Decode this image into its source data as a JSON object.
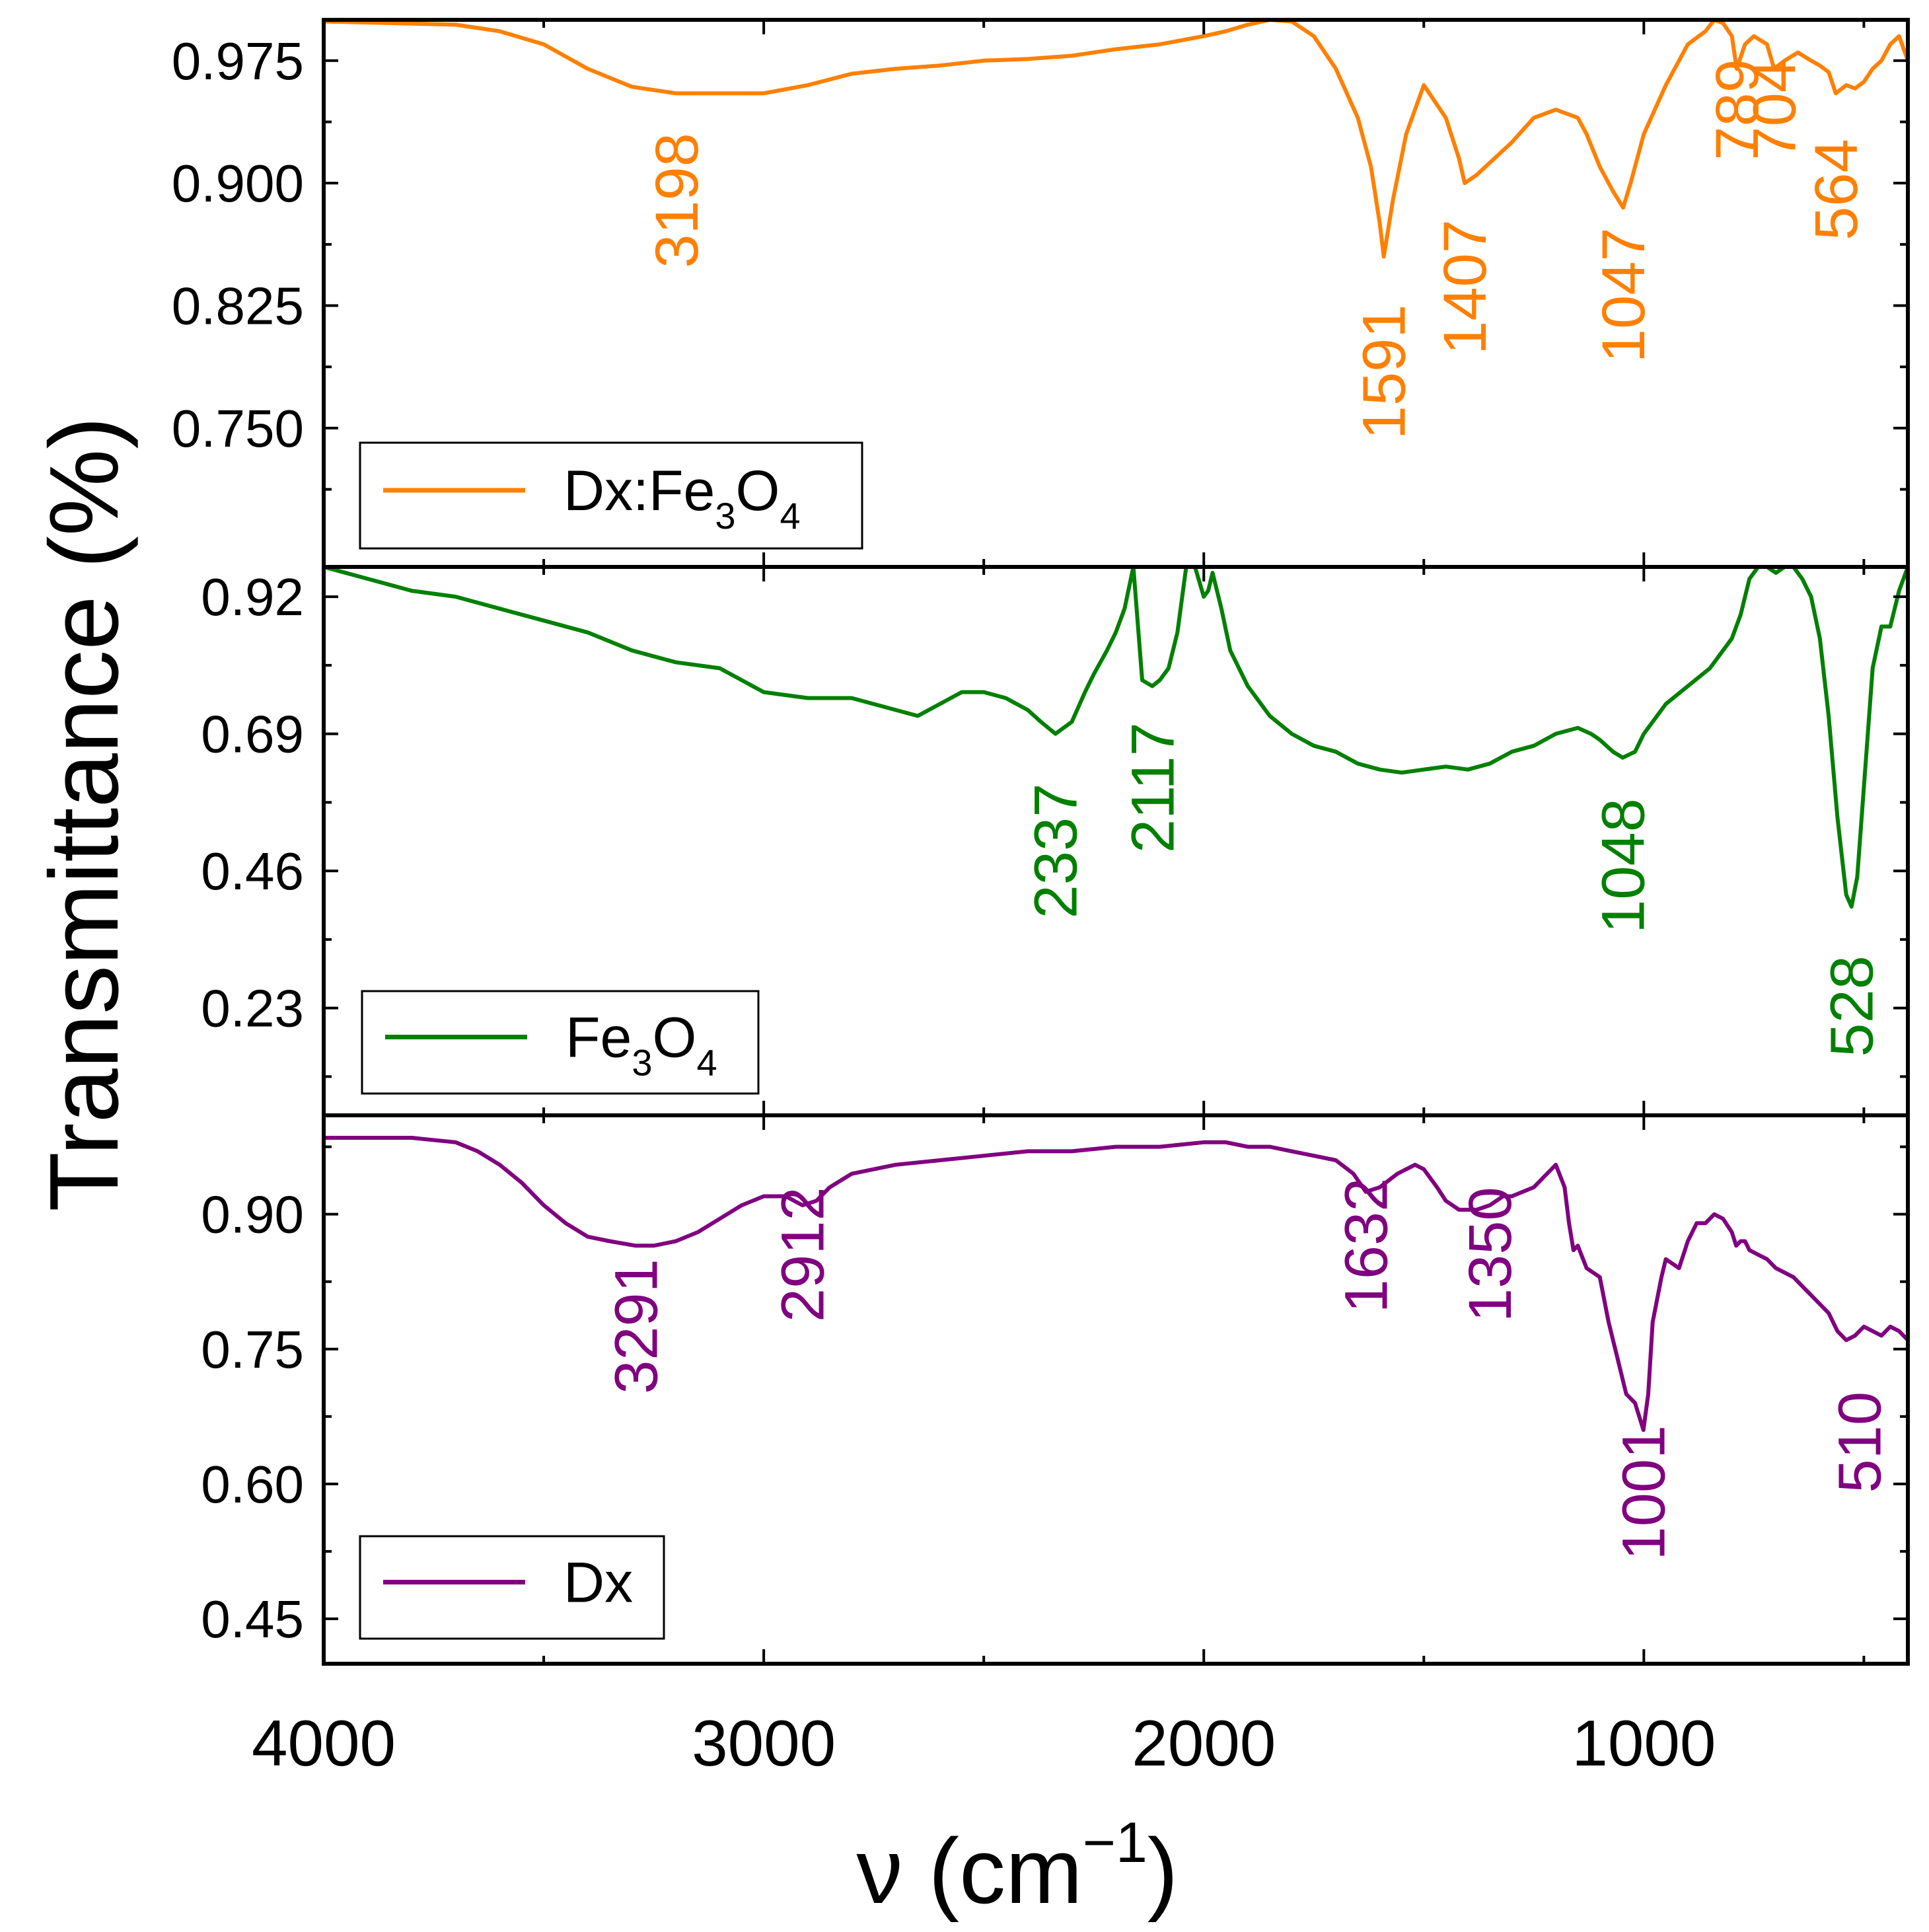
{
  "chart_data": {
    "type": "line",
    "layout": "stacked-panels",
    "xlabel": "ν (cm",
    "xlabel_superscript": "−1",
    "xlabel_close": ")",
    "ylabel": "Transmittance (%)",
    "xlim": [
      4000,
      400
    ],
    "x_ticks": [
      4000,
      3000,
      2000,
      1000
    ],
    "x_minor_ticks": [
      4000,
      3500,
      3000,
      2500,
      2000,
      1500,
      1000,
      500
    ],
    "panels": [
      {
        "name": "Dx:Fe3O4",
        "legend": {
          "prefix": "Dx:Fe",
          "sub1": "3",
          "mid": "O",
          "sub2": "4"
        },
        "color": "#ff8000",
        "ylim": [
          0.665,
          1.0
        ],
        "y_ticks": [
          "0.975",
          "0.900",
          "0.825",
          "0.750"
        ],
        "y_tick_values": [
          0.975,
          0.9,
          0.825,
          0.75
        ],
        "y_minor_ticks": [
          0.9375,
          0.8625,
          0.7875,
          0.7125
        ],
        "x": [
          4000,
          3850,
          3700,
          3600,
          3500,
          3400,
          3300,
          3200,
          3100,
          3000,
          2900,
          2800,
          2700,
          2600,
          2500,
          2400,
          2300,
          2200,
          2100,
          2000,
          1950,
          1900,
          1850,
          1800,
          1750,
          1700,
          1650,
          1620,
          1600,
          1591,
          1570,
          1540,
          1500,
          1450,
          1420,
          1407,
          1380,
          1340,
          1300,
          1250,
          1200,
          1150,
          1130,
          1100,
          1070,
          1047,
          1030,
          1000,
          950,
          900,
          860,
          840,
          820,
          800,
          789,
          770,
          750,
          720,
          704,
          680,
          650,
          620,
          600,
          580,
          564,
          540,
          520,
          500,
          480,
          460,
          440,
          420,
          400
        ],
        "y": [
          0.999,
          0.998,
          0.997,
          0.993,
          0.985,
          0.97,
          0.959,
          0.955,
          0.955,
          0.955,
          0.96,
          0.967,
          0.97,
          0.972,
          0.975,
          0.976,
          0.978,
          0.982,
          0.985,
          0.99,
          0.993,
          0.997,
          1.0,
          0.999,
          0.99,
          0.97,
          0.94,
          0.91,
          0.875,
          0.855,
          0.89,
          0.93,
          0.96,
          0.94,
          0.915,
          0.9,
          0.905,
          0.915,
          0.925,
          0.94,
          0.945,
          0.94,
          0.93,
          0.91,
          0.895,
          0.885,
          0.9,
          0.93,
          0.96,
          0.985,
          0.993,
          1.0,
          0.998,
          0.99,
          0.97,
          0.985,
          0.99,
          0.985,
          0.97,
          0.975,
          0.98,
          0.975,
          0.972,
          0.968,
          0.955,
          0.96,
          0.958,
          0.962,
          0.97,
          0.975,
          0.985,
          0.99,
          0.975
        ],
        "peaks": [
          {
            "label": "3198",
            "x": 3198,
            "y": 0.848
          },
          {
            "label": "1591",
            "x": 1591,
            "y": 0.743
          },
          {
            "label": "1407",
            "x": 1407,
            "y": 0.795
          },
          {
            "label": "1047",
            "x": 1047,
            "y": 0.79
          },
          {
            "label": "789",
            "x": 789,
            "y": 0.914
          },
          {
            "label": "704",
            "x": 704,
            "y": 0.914
          },
          {
            "label": "564",
            "x": 564,
            "y": 0.865
          }
        ]
      },
      {
        "name": "Fe3O4",
        "legend": {
          "prefix": "Fe",
          "sub1": "3",
          "mid": "O",
          "sub2": "4"
        },
        "color": "#008000",
        "ylim": [
          0.05,
          0.97
        ],
        "y_ticks": [
          "0.92",
          "0.69",
          "0.46",
          "0.23"
        ],
        "y_tick_values": [
          0.92,
          0.69,
          0.46,
          0.23
        ],
        "y_minor_ticks": [
          0.805,
          0.575,
          0.345,
          0.115
        ],
        "x": [
          4000,
          3900,
          3800,
          3700,
          3600,
          3500,
          3400,
          3300,
          3200,
          3100,
          3050,
          3000,
          2900,
          2800,
          2700,
          2650,
          2600,
          2550,
          2500,
          2450,
          2400,
          2370,
          2337,
          2300,
          2270,
          2250,
          2220,
          2200,
          2180,
          2160,
          2140,
          2117,
          2100,
          2080,
          2060,
          2040,
          2020,
          2000,
          1990,
          1980,
          1960,
          1940,
          1900,
          1850,
          1800,
          1750,
          1700,
          1650,
          1600,
          1550,
          1500,
          1450,
          1400,
          1350,
          1300,
          1250,
          1200,
          1150,
          1120,
          1100,
          1070,
          1048,
          1020,
          1000,
          950,
          900,
          850,
          800,
          780,
          760,
          740,
          720,
          700,
          680,
          660,
          640,
          620,
          600,
          580,
          560,
          540,
          528,
          515,
          500,
          480,
          460,
          440,
          420,
          400
        ],
        "y": [
          0.97,
          0.95,
          0.93,
          0.92,
          0.9,
          0.88,
          0.86,
          0.83,
          0.81,
          0.8,
          0.78,
          0.76,
          0.75,
          0.75,
          0.73,
          0.72,
          0.74,
          0.76,
          0.76,
          0.75,
          0.73,
          0.71,
          0.69,
          0.71,
          0.76,
          0.79,
          0.83,
          0.86,
          0.9,
          0.97,
          0.78,
          0.77,
          0.78,
          0.8,
          0.86,
          0.97,
          0.97,
          0.92,
          0.93,
          0.96,
          0.9,
          0.83,
          0.77,
          0.72,
          0.69,
          0.67,
          0.66,
          0.64,
          0.63,
          0.625,
          0.63,
          0.635,
          0.63,
          0.64,
          0.66,
          0.67,
          0.69,
          0.7,
          0.69,
          0.68,
          0.66,
          0.65,
          0.66,
          0.69,
          0.74,
          0.77,
          0.8,
          0.85,
          0.89,
          0.95,
          0.97,
          0.97,
          0.96,
          0.97,
          0.97,
          0.95,
          0.92,
          0.85,
          0.72,
          0.55,
          0.42,
          0.4,
          0.45,
          0.6,
          0.8,
          0.87,
          0.87,
          0.93,
          0.97
        ],
        "peaks": [
          {
            "label": "2337",
            "x": 2337,
            "y": 0.38
          },
          {
            "label": "2117",
            "x": 2117,
            "y": 0.49
          },
          {
            "label": "1048",
            "x": 1048,
            "y": 0.355
          },
          {
            "label": "528",
            "x": 528,
            "y": 0.148
          }
        ]
      },
      {
        "name": "Dx",
        "legend": {
          "prefix": "Dx",
          "sub1": "",
          "mid": "",
          "sub2": ""
        },
        "color": "#800080",
        "ylim": [
          0.4,
          1.01
        ],
        "y_ticks": [
          "0.90",
          "0.75",
          "0.60",
          "0.45"
        ],
        "y_tick_values": [
          0.9,
          0.75,
          0.6,
          0.45
        ],
        "y_minor_ticks": [
          0.975,
          0.825,
          0.675,
          0.525
        ],
        "x": [
          4000,
          3900,
          3800,
          3700,
          3650,
          3600,
          3550,
          3500,
          3450,
          3400,
          3350,
          3291,
          3250,
          3200,
          3150,
          3100,
          3050,
          3000,
          2950,
          2912,
          2880,
          2850,
          2800,
          2700,
          2600,
          2500,
          2400,
          2300,
          2200,
          2100,
          2000,
          1950,
          1900,
          1850,
          1800,
          1750,
          1700,
          1660,
          1632,
          1600,
          1560,
          1520,
          1500,
          1470,
          1450,
          1420,
          1380,
          1350,
          1320,
          1300,
          1250,
          1200,
          1180,
          1170,
          1160,
          1150,
          1130,
          1100,
          1080,
          1060,
          1040,
          1020,
          1001,
          990,
          980,
          960,
          950,
          920,
          900,
          880,
          860,
          840,
          820,
          800,
          790,
          780,
          770,
          760,
          740,
          720,
          700,
          680,
          660,
          640,
          620,
          600,
          580,
          560,
          540,
          520,
          510,
          500,
          480,
          460,
          440,
          420,
          400
        ],
        "y": [
          0.985,
          0.985,
          0.985,
          0.98,
          0.97,
          0.955,
          0.935,
          0.91,
          0.89,
          0.875,
          0.87,
          0.865,
          0.865,
          0.87,
          0.88,
          0.895,
          0.91,
          0.92,
          0.92,
          0.91,
          0.915,
          0.93,
          0.945,
          0.955,
          0.96,
          0.965,
          0.97,
          0.97,
          0.975,
          0.975,
          0.98,
          0.98,
          0.975,
          0.975,
          0.97,
          0.965,
          0.96,
          0.945,
          0.925,
          0.93,
          0.945,
          0.955,
          0.95,
          0.93,
          0.915,
          0.905,
          0.905,
          0.91,
          0.92,
          0.92,
          0.93,
          0.955,
          0.93,
          0.89,
          0.86,
          0.865,
          0.84,
          0.83,
          0.78,
          0.74,
          0.7,
          0.69,
          0.66,
          0.7,
          0.78,
          0.83,
          0.85,
          0.84,
          0.87,
          0.89,
          0.89,
          0.9,
          0.895,
          0.88,
          0.865,
          0.87,
          0.87,
          0.86,
          0.855,
          0.85,
          0.84,
          0.835,
          0.83,
          0.82,
          0.81,
          0.8,
          0.79,
          0.77,
          0.76,
          0.765,
          0.77,
          0.775,
          0.77,
          0.765,
          0.775,
          0.77,
          0.76
        ],
        "peaks": [
          {
            "label": "3291",
            "x": 3291,
            "y": 0.7
          },
          {
            "label": "2912",
            "x": 2912,
            "y": 0.78
          },
          {
            "label": "1632",
            "x": 1632,
            "y": 0.79
          },
          {
            "label": "1350",
            "x": 1350,
            "y": 0.78
          },
          {
            "label": "1001",
            "x": 1001,
            "y": 0.515
          },
          {
            "label": "510",
            "x": 510,
            "y": 0.59
          }
        ]
      }
    ]
  }
}
